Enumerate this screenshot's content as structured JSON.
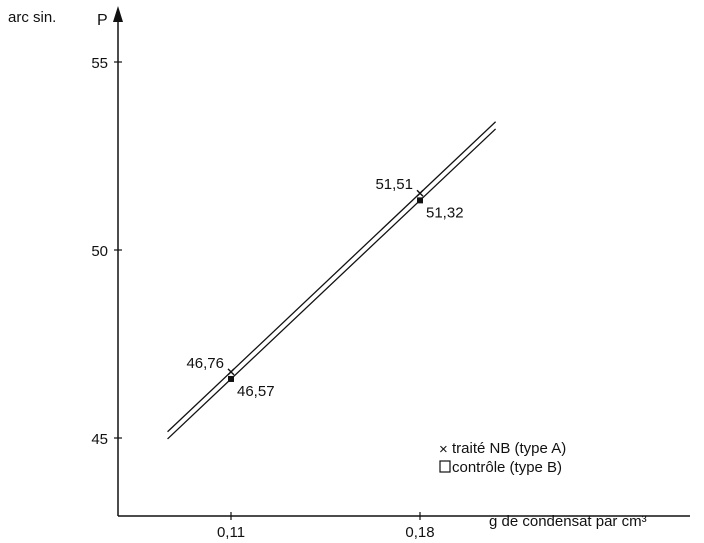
{
  "chart_data": {
    "type": "line",
    "title": "",
    "y_unit_label": "arc sin.",
    "ylabel": "P",
    "xlabel": "g de condensat par cm³",
    "x_tick_labels": [
      "0,11",
      "0,18"
    ],
    "x_ticks": [
      0.11,
      0.18
    ],
    "y_ticks": [
      45,
      50,
      55
    ],
    "ylim": [
      43,
      55.5
    ],
    "grid": false,
    "legend_position": "bottom-right",
    "series": [
      {
        "name": "traité NB (type A)",
        "marker": "x",
        "x": [
          0.11,
          0.18
        ],
        "y": [
          46.76,
          51.51
        ],
        "labels": [
          "46,76",
          "51,51"
        ]
      },
      {
        "name": "contrôle (type B)",
        "marker": "square",
        "x": [
          0.11,
          0.18
        ],
        "y": [
          46.57,
          51.32
        ],
        "labels": [
          "46,57",
          "51,32"
        ]
      }
    ]
  },
  "colors": {
    "ink": "#111111",
    "background": "#ffffff"
  }
}
